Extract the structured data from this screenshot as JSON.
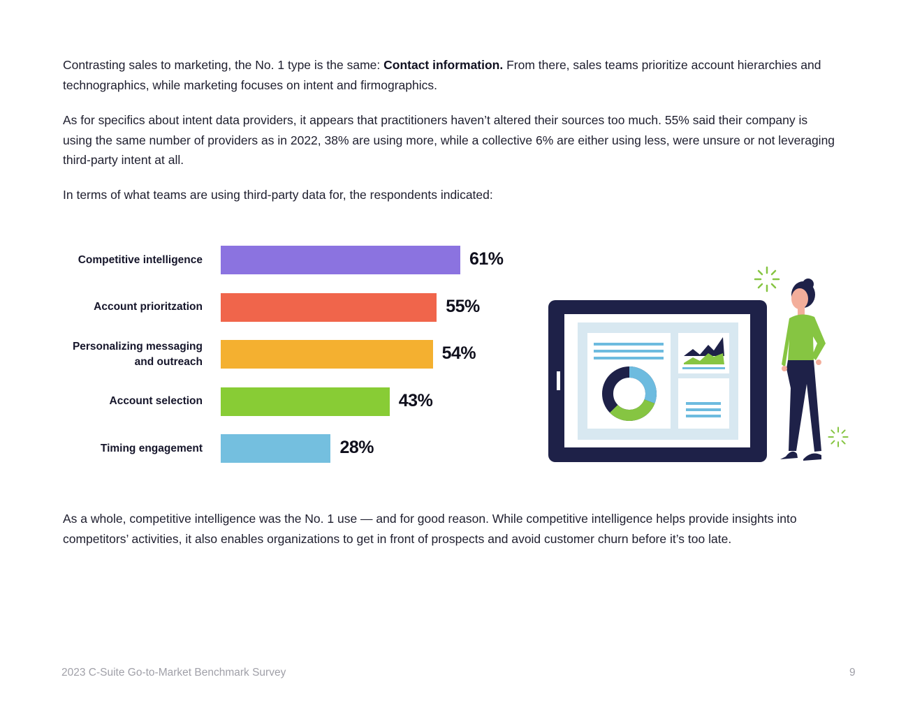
{
  "body": {
    "p1_pre": "Contrasting sales to marketing, the No. 1 type is the same: ",
    "p1_bold": "Contact information.",
    "p1_post": " From there, sales teams prioritize account hierarchies and technographics, while marketing focuses on intent and firmographics.",
    "p2": "As for specifics about intent data providers, it appears that practitioners haven’t altered their sources too much. 55% said their company is using the same number of providers as in 2022, 38% are using more, while a collective 6% are either using less, were unsure or not leveraging third-party intent at all.",
    "p3": "In terms of what teams are using third-party data for, the respondents indicated:",
    "p4": "As a whole, competitive intelligence was the No. 1 use — and for good reason. While competitive intelligence helps provide insights into competitors’ activities, it also enables organizations to get in front of prospects and avoid customer churn before it’s too late."
  },
  "chart_data": {
    "type": "bar",
    "orientation": "horizontal",
    "title": "",
    "xlabel": "",
    "ylabel": "",
    "xlim": [
      0,
      100
    ],
    "categories": [
      "Competitive intelligence",
      "Account prioritzation",
      "Personalizing messaging and outreach",
      "Account selection",
      "Timing engagement"
    ],
    "label_lines": [
      [
        "Competitive intelligence"
      ],
      [
        "Account prioritzation"
      ],
      [
        "Personalizing messaging",
        "and outreach"
      ],
      [
        "Account selection"
      ],
      [
        "Timing engagement"
      ]
    ],
    "values": [
      61,
      55,
      54,
      43,
      28
    ],
    "value_labels": [
      "61%",
      "55%",
      "54%",
      "43%",
      "28%"
    ],
    "colors": [
      "#8b73e0",
      "#f0654b",
      "#f4b030",
      "#88cc35",
      "#74bfdf"
    ]
  },
  "illustration": {
    "name": "woman-presenting-tablet-dashboard",
    "colors": {
      "navy": "#1e2148",
      "green": "#86c542",
      "blue": "#6dbbdf",
      "panel": "#d8e8f1",
      "skin": "#f3ae9b"
    }
  },
  "footer": {
    "title": "2023 C-Suite Go-to-Market Benchmark Survey",
    "page": "9"
  }
}
